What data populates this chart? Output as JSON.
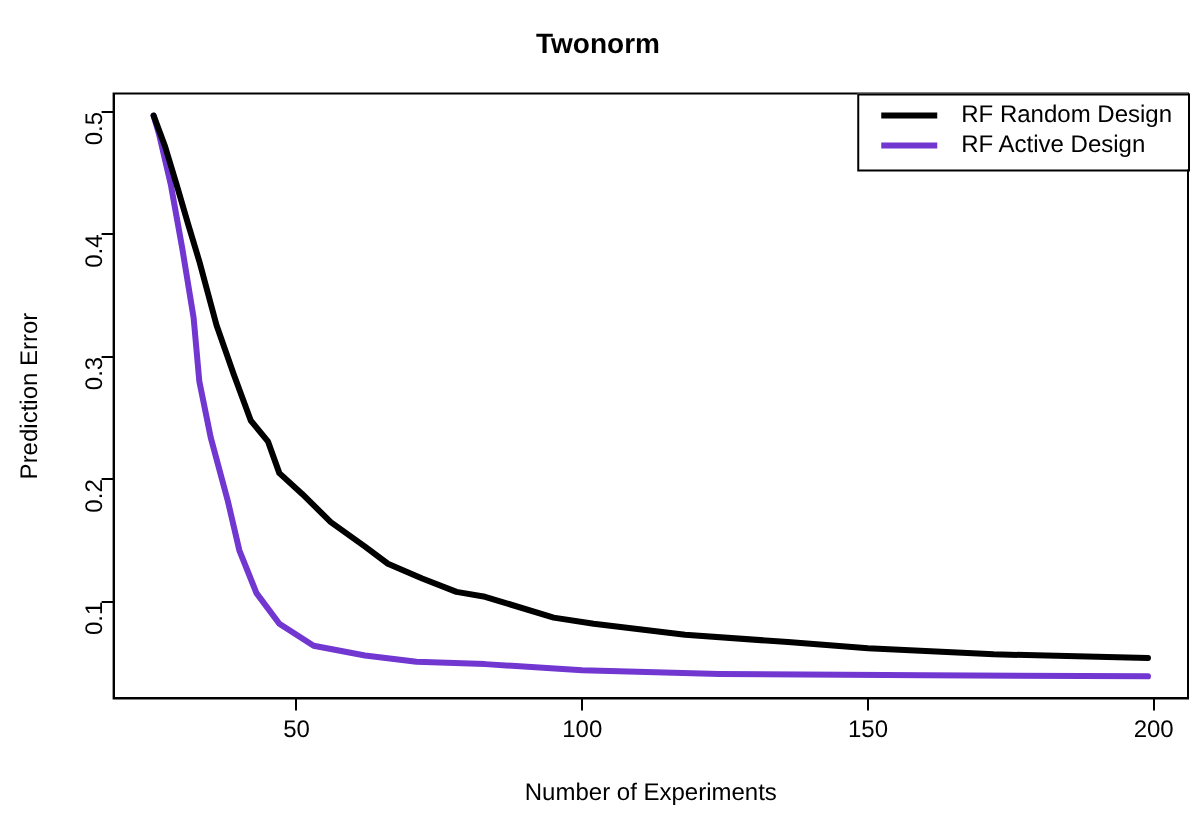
{
  "chart_data": {
    "type": "line",
    "title": "Twonorm",
    "xlabel": "Number of Experiments",
    "ylabel": "Prediction Error",
    "xlim": [
      18,
      206
    ],
    "xticks": [
      50,
      100,
      150,
      200
    ],
    "ylim": [
      0.021,
      0.515
    ],
    "yticks": [
      0.1,
      0.2,
      0.3,
      0.4,
      0.5
    ],
    "grid": false,
    "legend": "top right",
    "marker": "none",
    "line_style": "solid",
    "series": [
      {
        "name": "RF Random Design",
        "color": "#000000",
        "x": [
          25,
          27,
          29,
          31,
          33,
          36,
          39,
          42,
          45,
          47,
          51,
          56,
          62,
          66,
          72,
          78,
          83,
          95,
          102,
          118,
          136,
          150,
          172,
          199
        ],
        "values": [
          0.497,
          0.472,
          0.441,
          0.409,
          0.378,
          0.326,
          0.286,
          0.248,
          0.231,
          0.205,
          0.188,
          0.165,
          0.145,
          0.131,
          0.119,
          0.108,
          0.104,
          0.087,
          0.082,
          0.073,
          0.067,
          0.062,
          0.057,
          0.054
        ]
      },
      {
        "name": "RF Active Design",
        "color": "#7137d0",
        "x": [
          25,
          26,
          28,
          30,
          32,
          33,
          35,
          38,
          40,
          43,
          47,
          53,
          62,
          71,
          83,
          100,
          124,
          160,
          199
        ],
        "values": [
          0.497,
          0.481,
          0.441,
          0.389,
          0.332,
          0.28,
          0.234,
          0.182,
          0.142,
          0.107,
          0.082,
          0.064,
          0.056,
          0.051,
          0.049,
          0.044,
          0.041,
          0.04,
          0.039
        ]
      }
    ]
  }
}
